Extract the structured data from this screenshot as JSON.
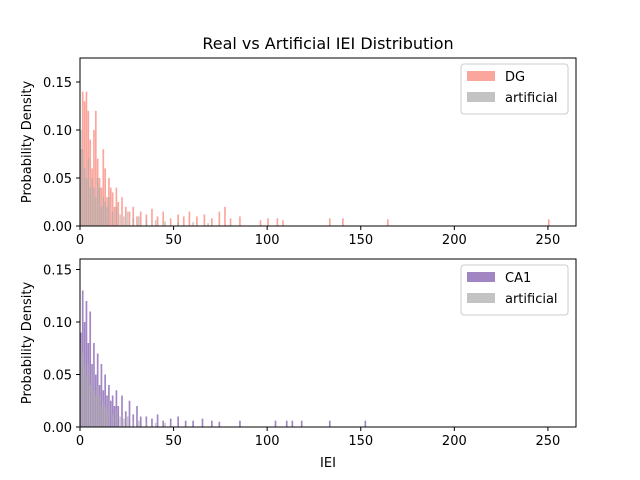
{
  "chart_data": {
    "title": "Real vs Artificial IEI Distribution",
    "panels": [
      {
        "type": "bar",
        "ylabel": "Probability Density",
        "xlabel": "",
        "xlim": [
          0,
          265
        ],
        "ylim": [
          0,
          0.175
        ],
        "xticks": [
          "0",
          "50",
          "100",
          "150",
          "200",
          "250"
        ],
        "yticks": [
          "0.00",
          "0.05",
          "0.10",
          "0.15"
        ],
        "legend_position": "top-right",
        "series": [
          {
            "name": "DG",
            "color": "#fa8072",
            "x": [
              0,
              1,
              2,
              3,
              4,
              5,
              6,
              7,
              8,
              9,
              10,
              11,
              12,
              13,
              14,
              15,
              16,
              17,
              18,
              19,
              20,
              22,
              24,
              26,
              28,
              30,
              32,
              35,
              38,
              41,
              44,
              48,
              52,
              55,
              58,
              62,
              66,
              70,
              74,
              77,
              80,
              85,
              96,
              100,
              105,
              108,
              133,
              140,
              164,
              250
            ],
            "values": [
              0.08,
              0.14,
              0.13,
              0.14,
              0.12,
              0.09,
              0.06,
              0.1,
              0.12,
              0.07,
              0.05,
              0.04,
              0.08,
              0.06,
              0.03,
              0.05,
              0.04,
              0.035,
              0.02,
              0.04,
              0.025,
              0.03,
              0.02,
              0.015,
              0.02,
              0.01,
              0.015,
              0.012,
              0.018,
              0.01,
              0.015,
              0.008,
              0.012,
              0.01,
              0.015,
              0.01,
              0.012,
              0.008,
              0.015,
              0.02,
              0.008,
              0.01,
              0.006,
              0.008,
              0.008,
              0.006,
              0.008,
              0.008,
              0.007,
              0.007
            ]
          },
          {
            "name": "artificial",
            "color": "#a9a9a9",
            "x": [
              0,
              1,
              2,
              3,
              4,
              5,
              6,
              7,
              8,
              9,
              10,
              11,
              12,
              13,
              14,
              15,
              17,
              19,
              21,
              23,
              25,
              28,
              31,
              35,
              40,
              45,
              52,
              60,
              68
            ],
            "values": [
              0.1,
              0.08,
              0.06,
              0.05,
              0.07,
              0.04,
              0.05,
              0.04,
              0.03,
              0.05,
              0.04,
              0.02,
              0.03,
              0.025,
              0.02,
              0.03,
              0.015,
              0.02,
              0.012,
              0.01,
              0.015,
              0.008,
              0.01,
              0.006,
              0.006,
              0.005,
              0.004,
              0.004,
              0.003
            ]
          }
        ]
      },
      {
        "type": "bar",
        "ylabel": "Probability Density",
        "xlabel": "IEI",
        "xlim": [
          0,
          265
        ],
        "ylim": [
          0,
          0.16
        ],
        "xticks": [
          "0",
          "50",
          "100",
          "150",
          "200",
          "250"
        ],
        "yticks": [
          "0.00",
          "0.05",
          "0.10",
          "0.15"
        ],
        "legend_position": "top-right",
        "series": [
          {
            "name": "CA1",
            "color": "#7b52ab",
            "x": [
              0,
              1,
              2,
              3,
              4,
              5,
              6,
              7,
              8,
              9,
              10,
              11,
              12,
              13,
              14,
              15,
              16,
              17,
              18,
              19,
              20,
              22,
              24,
              26,
              28,
              30,
              32,
              35,
              38,
              41,
              44,
              48,
              52,
              56,
              60,
              65,
              70,
              74,
              85,
              104,
              110,
              113,
              118,
              133,
              152
            ],
            "values": [
              0.09,
              0.13,
              0.1,
              0.12,
              0.08,
              0.11,
              0.06,
              0.08,
              0.05,
              0.07,
              0.04,
              0.06,
              0.035,
              0.05,
              0.03,
              0.04,
              0.025,
              0.03,
              0.02,
              0.035,
              0.02,
              0.03,
              0.015,
              0.025,
              0.012,
              0.02,
              0.01,
              0.01,
              0.008,
              0.012,
              0.006,
              0.008,
              0.01,
              0.006,
              0.006,
              0.008,
              0.006,
              0.005,
              0.006,
              0.006,
              0.006,
              0.006,
              0.006,
              0.006,
              0.006
            ]
          },
          {
            "name": "artificial",
            "color": "#a9a9a9",
            "x": [
              0,
              1,
              2,
              3,
              4,
              5,
              6,
              7,
              8,
              9,
              10,
              11,
              12,
              13,
              14,
              15,
              17,
              19,
              21,
              23,
              25,
              28,
              31,
              35,
              40,
              45
            ],
            "values": [
              0.08,
              0.07,
              0.06,
              0.05,
              0.06,
              0.04,
              0.05,
              0.035,
              0.03,
              0.04,
              0.03,
              0.02,
              0.025,
              0.02,
              0.015,
              0.02,
              0.012,
              0.015,
              0.01,
              0.008,
              0.01,
              0.006,
              0.006,
              0.005,
              0.004,
              0.004
            ]
          }
        ]
      }
    ]
  }
}
